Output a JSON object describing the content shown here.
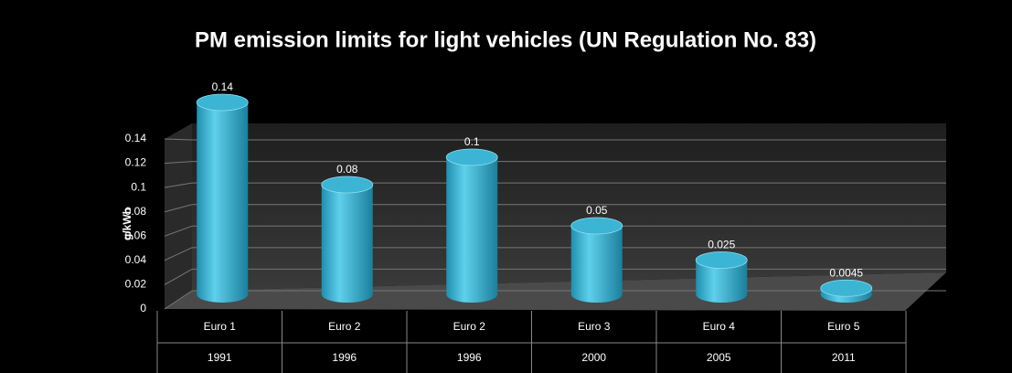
{
  "chart_data": {
    "type": "bar",
    "title": "PM emission limits for light vehicles (UN Regulation No. 83)",
    "y_label": "g/kWh",
    "categories": [
      "Euro 1",
      "Euro 2",
      "Euro 2",
      "Euro 3",
      "Euro 4",
      "Euro 5"
    ],
    "category_years": [
      "1991",
      "1996",
      "1996",
      "2000",
      "2005",
      "2011"
    ],
    "values": [
      0.14,
      0.08,
      0.1,
      0.05,
      0.025,
      0.0045
    ],
    "color": "#3cb4d4",
    "ylim": [
      0,
      0.14
    ],
    "yticks": [
      0,
      0.02,
      0.04,
      0.06,
      0.08,
      0.1,
      0.12,
      0.14
    ],
    "grid": true
  }
}
